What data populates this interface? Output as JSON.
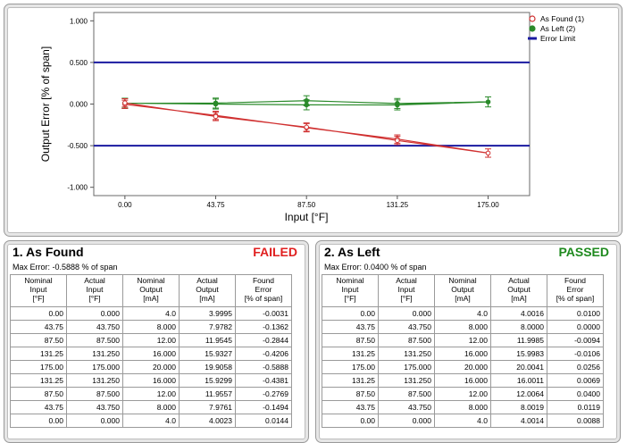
{
  "chart_data": {
    "type": "line",
    "xlabel": "Input [°F]",
    "ylabel": "Output Error [% of span]",
    "x": [
      0,
      43.75,
      87.5,
      131.25,
      175
    ],
    "xticks": [
      "0.00",
      "43.75",
      "87.50",
      "131.25",
      "175.00"
    ],
    "yticks": [
      "1.000",
      "0.500",
      "0.000",
      "-0.500",
      "-1.000"
    ],
    "xlim": [
      -15,
      195
    ],
    "ylim": [
      -1.1,
      1.1
    ],
    "legend_position": "top-right",
    "series": [
      {
        "name": "As Found (1)",
        "color": "#d03030",
        "marker": "open-circle",
        "points": [
          [
            0,
            -0.0031
          ],
          [
            43.75,
            -0.1362
          ],
          [
            87.5,
            -0.2844
          ],
          [
            131.25,
            -0.4206
          ],
          [
            175,
            -0.5888
          ],
          [
            131.25,
            -0.4381
          ],
          [
            87.5,
            -0.2769
          ],
          [
            43.75,
            -0.1494
          ],
          [
            0,
            0.0144
          ]
        ],
        "error_bar": 0.05
      },
      {
        "name": "As Left (2)",
        "color": "#2a8a2a",
        "marker": "filled-circle",
        "points": [
          [
            0,
            0.01
          ],
          [
            43.75,
            0.0
          ],
          [
            87.5,
            -0.0094
          ],
          [
            131.25,
            -0.0106
          ],
          [
            175,
            0.0256
          ],
          [
            131.25,
            0.0069
          ],
          [
            87.5,
            0.04
          ],
          [
            43.75,
            0.0119
          ],
          [
            0,
            0.0088
          ]
        ],
        "error_bar": 0.06
      },
      {
        "name": "Error Limit",
        "color": "#1a1aa0",
        "marker": "none",
        "upper": 0.5,
        "lower": -0.5
      }
    ]
  },
  "as_found": {
    "title": "1. As Found",
    "status": "FAILED",
    "status_color": "#e02020",
    "max_error": "Max Error: -0.5888 % of span",
    "headers": [
      [
        "Nominal",
        "Input",
        "[°F]"
      ],
      [
        "Actual",
        "Input",
        "[°F]"
      ],
      [
        "Nominal",
        "Output",
        "[mA]"
      ],
      [
        "Actual",
        "Output",
        "[mA]"
      ],
      [
        "Found",
        "Error",
        "[% of span]"
      ]
    ],
    "rows": [
      [
        "0.00",
        "0.000",
        "4.0",
        "3.9995",
        "-0.0031"
      ],
      [
        "43.75",
        "43.750",
        "8.000",
        "7.9782",
        "-0.1362"
      ],
      [
        "87.50",
        "87.500",
        "12.00",
        "11.9545",
        "-0.2844"
      ],
      [
        "131.25",
        "131.250",
        "16.000",
        "15.9327",
        "-0.4206"
      ],
      [
        "175.00",
        "175.000",
        "20.000",
        "19.9058",
        "-0.5888"
      ],
      [
        "131.25",
        "131.250",
        "16.000",
        "15.9299",
        "-0.4381"
      ],
      [
        "87.50",
        "87.500",
        "12.00",
        "11.9557",
        "-0.2769"
      ],
      [
        "43.75",
        "43.750",
        "8.000",
        "7.9761",
        "-0.1494"
      ],
      [
        "0.00",
        "0.000",
        "4.0",
        "4.0023",
        "0.0144"
      ]
    ]
  },
  "as_left": {
    "title": "2. As Left",
    "status": "PASSED",
    "status_color": "#1f8a1f",
    "max_error": "Max Error: 0.0400 % of span",
    "headers": [
      [
        "Nominal",
        "Input",
        "[°F]"
      ],
      [
        "Actual",
        "Input",
        "[°F]"
      ],
      [
        "Nominal",
        "Output",
        "[mA]"
      ],
      [
        "Actual",
        "Output",
        "[mA]"
      ],
      [
        "Found",
        "Error",
        "[% of span]"
      ]
    ],
    "rows": [
      [
        "0.00",
        "0.000",
        "4.0",
        "4.0016",
        "0.0100"
      ],
      [
        "43.75",
        "43.750",
        "8.000",
        "8.0000",
        "0.0000"
      ],
      [
        "87.50",
        "87.500",
        "12.00",
        "11.9985",
        "-0.0094"
      ],
      [
        "131.25",
        "131.250",
        "16.000",
        "15.9983",
        "-0.0106"
      ],
      [
        "175.00",
        "175.000",
        "20.000",
        "20.0041",
        "0.0256"
      ],
      [
        "131.25",
        "131.250",
        "16.000",
        "16.0011",
        "0.0069"
      ],
      [
        "87.50",
        "87.500",
        "12.00",
        "12.0064",
        "0.0400"
      ],
      [
        "43.75",
        "43.750",
        "8.000",
        "8.0019",
        "0.0119"
      ],
      [
        "0.00",
        "0.000",
        "4.0",
        "4.0014",
        "0.0088"
      ]
    ]
  }
}
